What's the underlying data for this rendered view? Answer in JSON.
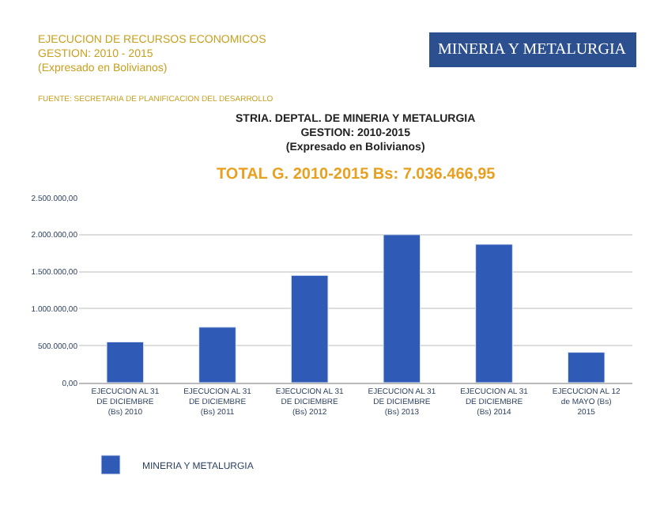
{
  "chart_data": {
    "type": "bar",
    "title": "STRIA. DEPTAL. DE MINERIA Y METALURGIA",
    "subtitle": "GESTION: 2010-2015\n(Expresado en Bolivianos)",
    "categories": [
      "EJECUCION AL 31 DE DICIEMBRE (Bs) 2010",
      "EJECUCION AL 31 DE DICIEMBRE (Bs) 2011",
      "EJECUCION AL 31 DE DICIEMBRE (Bs) 2012",
      "EJECUCION AL 31 DE DICIEMBRE (Bs) 2013",
      "EJECUCION AL 31 DE DICIEMBRE (Bs) 2014",
      "EJECUCION AL 12 de MAYO (Bs) 2015"
    ],
    "series": [
      {
        "name": "MINERIA Y METALURGIA",
        "color": "#2f5bb7",
        "values": [
          550000,
          750000,
          1450000,
          2000000,
          1870000,
          410000
        ]
      }
    ],
    "ylim": [
      0,
      2500000
    ],
    "yticks": [
      {
        "value": 0,
        "label": "0,00"
      },
      {
        "value": 500000,
        "label": "500.000,00"
      },
      {
        "value": 1000000,
        "label": "1.000.000,00"
      },
      {
        "value": 1500000,
        "label": "1.500.000,00"
      },
      {
        "value": 2000000,
        "label": "2.000.000,00"
      },
      {
        "value": 2500000,
        "label": "2.500.000,00"
      }
    ],
    "grid": "y",
    "legend": "bottom left",
    "annotations": [
      "EJECUCION DE RECURSOS ECONOMICOS\nGESTION: 2010 - 2015\n(Expresado en Bolivianos)",
      "FUENTE: SECRETARIA DE PLANIFICACION DEL DESARROLLO",
      "MINERIA Y METALURGIA",
      "TOTAL G. 2010-2015 Bs: 7.036.466,95"
    ]
  }
}
